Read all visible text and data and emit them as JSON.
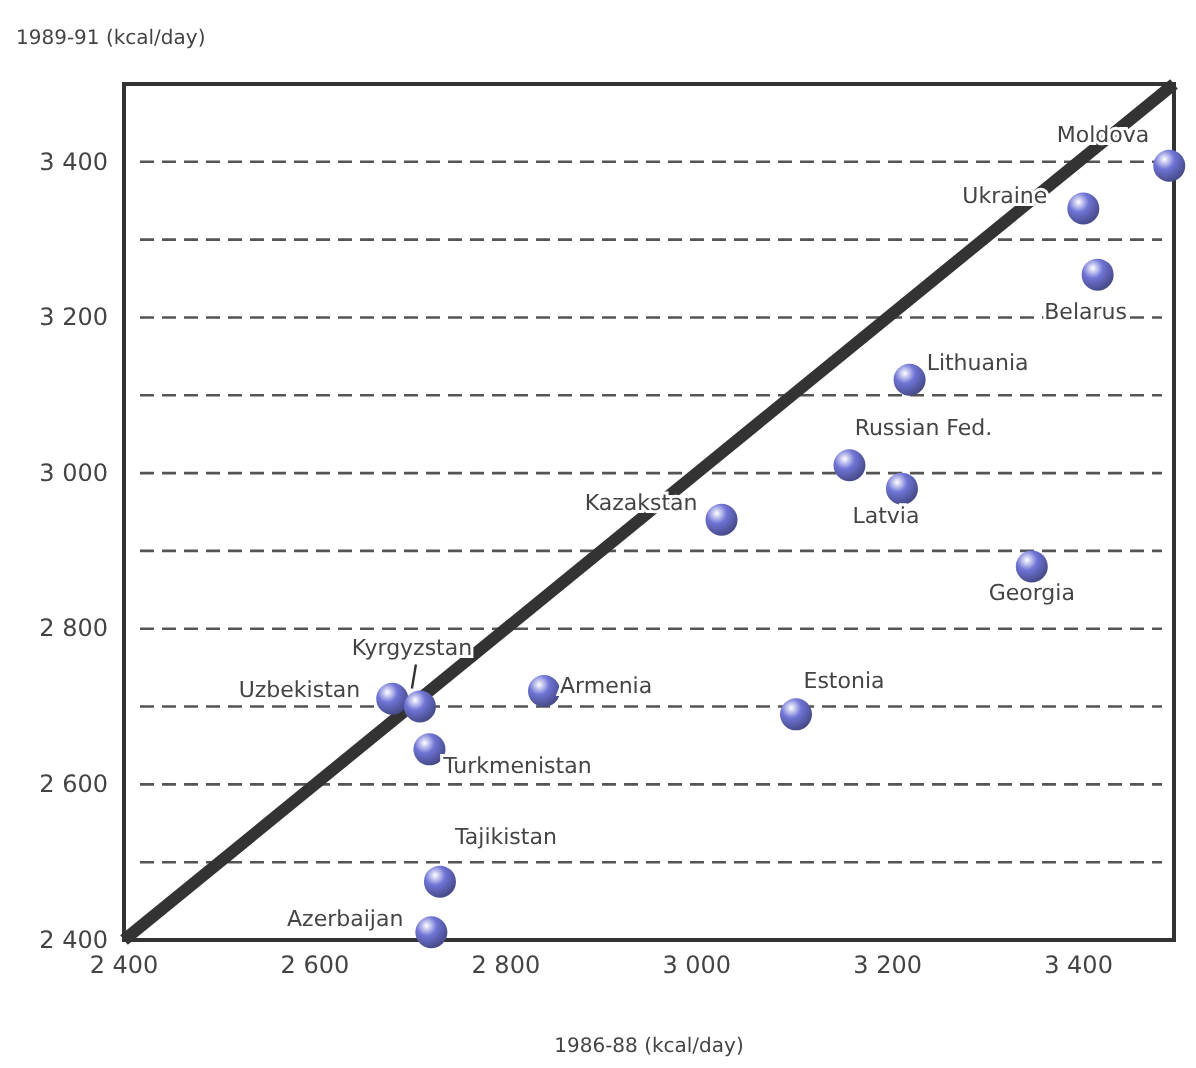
{
  "chart_data": {
    "type": "scatter",
    "xlabel": "1986-88 (kcal/day)",
    "ylabel": "1989-91 (kcal/day)",
    "xlim": [
      2400,
      3500
    ],
    "ylim": [
      2400,
      3500
    ],
    "xticks": [
      {
        "value": 2400,
        "label": "2 400"
      },
      {
        "value": 2600,
        "label": "2 600"
      },
      {
        "value": 2800,
        "label": "2 800"
      },
      {
        "value": 3000,
        "label": "3 000"
      },
      {
        "value": 3200,
        "label": "3 200"
      },
      {
        "value": 3400,
        "label": "3 400"
      }
    ],
    "yticks": [
      {
        "value": 2400,
        "label": "2 400"
      },
      {
        "value": 2500,
        "label": null
      },
      {
        "value": 2600,
        "label": "2 600"
      },
      {
        "value": 2700,
        "label": null
      },
      {
        "value": 2800,
        "label": "2 800"
      },
      {
        "value": 2900,
        "label": null
      },
      {
        "value": 3000,
        "label": "3 000"
      },
      {
        "value": 3100,
        "label": null
      },
      {
        "value": 3200,
        "label": "3 200"
      },
      {
        "value": 3300,
        "label": null
      },
      {
        "value": 3400,
        "label": "3 400"
      }
    ],
    "grid": "y",
    "series": [
      {
        "marker": "circle",
        "color": "#6f74d6",
        "x": [
          3495,
          3405,
          3420,
          3223,
          3160,
          3215,
          3026,
          3351,
          2681,
          2710,
          2840,
          3104,
          2720,
          2731,
          2722
        ],
        "values": [
          3395,
          3340,
          3255,
          3120,
          3010,
          2980,
          2940,
          2880,
          2710,
          2700,
          2720,
          2690,
          2645,
          2475,
          2410
        ]
      },
      {
        "type": "line",
        "color": "#333333",
        "line_style": "solid",
        "x": [
          2400,
          3500
        ],
        "values": [
          2400,
          3500
        ]
      }
    ],
    "annotations": [
      {
        "text": "Moldova",
        "x": 3495,
        "y": 3395
      },
      {
        "text": "Ukraine",
        "x": 3405,
        "y": 3340
      },
      {
        "text": "Belarus",
        "x": 3420,
        "y": 3255
      },
      {
        "text": "Lithuania",
        "x": 3223,
        "y": 3120
      },
      {
        "text": "Russian Fed.",
        "x": 3160,
        "y": 3010
      },
      {
        "text": "Latvia",
        "x": 3215,
        "y": 2980
      },
      {
        "text": "Kazakstan",
        "x": 3026,
        "y": 2940
      },
      {
        "text": "Georgia",
        "x": 3351,
        "y": 2880
      },
      {
        "text": "Uzbekistan",
        "x": 2681,
        "y": 2710
      },
      {
        "text": "Kyrgyzstan",
        "x": 2710,
        "y": 2700
      },
      {
        "text": "Armenia",
        "x": 2840,
        "y": 2720
      },
      {
        "text": "Estonia",
        "x": 3104,
        "y": 2690
      },
      {
        "text": "Turkmenistan",
        "x": 2720,
        "y": 2645
      },
      {
        "text": "Tajikistan",
        "x": 2731,
        "y": 2475
      },
      {
        "text": "Azerbaijan",
        "x": 2722,
        "y": 2410
      }
    ]
  }
}
